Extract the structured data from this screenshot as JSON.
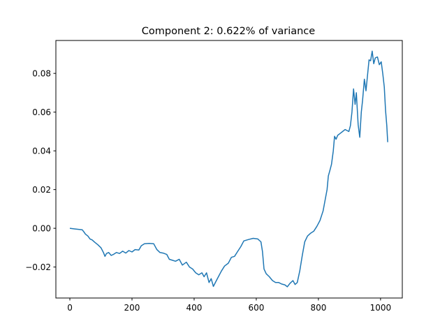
{
  "chart_data": {
    "type": "line",
    "title": "Component 2: 0.622% of variance",
    "xlabel": "",
    "ylabel": "",
    "xlim": [
      -45,
      1070
    ],
    "ylim": [
      -0.036,
      0.097
    ],
    "x_ticks": [
      0,
      200,
      400,
      600,
      800,
      1000
    ],
    "x_tick_labels": [
      "0",
      "200",
      "400",
      "600",
      "800",
      "1000"
    ],
    "y_ticks": [
      -0.02,
      0.0,
      0.02,
      0.04,
      0.06,
      0.08
    ],
    "y_tick_labels": [
      "−0.02",
      "0.00",
      "0.02",
      "0.04",
      "0.06",
      "0.08"
    ],
    "grid": false,
    "legend": "none",
    "series": [
      {
        "color": "#1f77b4",
        "points": [
          [
            0,
            0.0
          ],
          [
            15,
            -0.0003
          ],
          [
            30,
            -0.0006
          ],
          [
            40,
            -0.0008
          ],
          [
            45,
            -0.0018
          ],
          [
            50,
            -0.003
          ],
          [
            58,
            -0.004
          ],
          [
            65,
            -0.0055
          ],
          [
            72,
            -0.006
          ],
          [
            80,
            -0.0072
          ],
          [
            90,
            -0.0085
          ],
          [
            100,
            -0.01
          ],
          [
            108,
            -0.0125
          ],
          [
            113,
            -0.0145
          ],
          [
            118,
            -0.013
          ],
          [
            125,
            -0.0125
          ],
          [
            133,
            -0.014
          ],
          [
            140,
            -0.0135
          ],
          [
            150,
            -0.0125
          ],
          [
            160,
            -0.013
          ],
          [
            170,
            -0.0118
          ],
          [
            180,
            -0.0128
          ],
          [
            190,
            -0.0115
          ],
          [
            200,
            -0.0122
          ],
          [
            210,
            -0.011
          ],
          [
            222,
            -0.0112
          ],
          [
            230,
            -0.009
          ],
          [
            240,
            -0.008
          ],
          [
            255,
            -0.0078
          ],
          [
            270,
            -0.008
          ],
          [
            280,
            -0.011
          ],
          [
            290,
            -0.0125
          ],
          [
            300,
            -0.0128
          ],
          [
            312,
            -0.0135
          ],
          [
            320,
            -0.016
          ],
          [
            330,
            -0.0165
          ],
          [
            340,
            -0.017
          ],
          [
            352,
            -0.016
          ],
          [
            362,
            -0.019
          ],
          [
            375,
            -0.0175
          ],
          [
            385,
            -0.02
          ],
          [
            395,
            -0.021
          ],
          [
            405,
            -0.023
          ],
          [
            415,
            -0.024
          ],
          [
            425,
            -0.023
          ],
          [
            432,
            -0.025
          ],
          [
            440,
            -0.023
          ],
          [
            448,
            -0.028
          ],
          [
            455,
            -0.026
          ],
          [
            462,
            -0.03
          ],
          [
            470,
            -0.0275
          ],
          [
            478,
            -0.025
          ],
          [
            488,
            -0.022
          ],
          [
            498,
            -0.0195
          ],
          [
            510,
            -0.018
          ],
          [
            520,
            -0.015
          ],
          [
            530,
            -0.0145
          ],
          [
            540,
            -0.012
          ],
          [
            550,
            -0.0095
          ],
          [
            560,
            -0.0065
          ],
          [
            575,
            -0.0058
          ],
          [
            590,
            -0.0052
          ],
          [
            605,
            -0.0055
          ],
          [
            615,
            -0.007
          ],
          [
            620,
            -0.012
          ],
          [
            625,
            -0.021
          ],
          [
            632,
            -0.0235
          ],
          [
            642,
            -0.025
          ],
          [
            652,
            -0.027
          ],
          [
            662,
            -0.028
          ],
          [
            672,
            -0.028
          ],
          [
            682,
            -0.0288
          ],
          [
            692,
            -0.0292
          ],
          [
            700,
            -0.0302
          ],
          [
            708,
            -0.0285
          ],
          [
            718,
            -0.027
          ],
          [
            725,
            -0.029
          ],
          [
            732,
            -0.028
          ],
          [
            740,
            -0.022
          ],
          [
            748,
            -0.014
          ],
          [
            756,
            -0.007
          ],
          [
            765,
            -0.004
          ],
          [
            775,
            -0.0025
          ],
          [
            785,
            -0.0015
          ],
          [
            795,
            0.001
          ],
          [
            805,
            0.004
          ],
          [
            815,
            0.009
          ],
          [
            822,
            0.015
          ],
          [
            828,
            0.02
          ],
          [
            832,
            0.027
          ],
          [
            837,
            0.03
          ],
          [
            842,
            0.033
          ],
          [
            848,
            0.04
          ],
          [
            852,
            0.0475
          ],
          [
            857,
            0.046
          ],
          [
            862,
            0.048
          ],
          [
            870,
            0.049
          ],
          [
            878,
            0.05
          ],
          [
            886,
            0.051
          ],
          [
            892,
            0.0505
          ],
          [
            898,
            0.05
          ],
          [
            903,
            0.053
          ],
          [
            908,
            0.06
          ],
          [
            913,
            0.072
          ],
          [
            918,
            0.064
          ],
          [
            922,
            0.07
          ],
          [
            928,
            0.0535
          ],
          [
            933,
            0.047
          ],
          [
            938,
            0.06
          ],
          [
            942,
            0.066
          ],
          [
            948,
            0.077
          ],
          [
            953,
            0.071
          ],
          [
            958,
            0.079
          ],
          [
            963,
            0.087
          ],
          [
            968,
            0.0865
          ],
          [
            973,
            0.0915
          ],
          [
            978,
            0.085
          ],
          [
            983,
            0.088
          ],
          [
            990,
            0.0885
          ],
          [
            996,
            0.0845
          ],
          [
            1002,
            0.086
          ],
          [
            1007,
            0.08
          ],
          [
            1012,
            0.073
          ],
          [
            1016,
            0.061
          ],
          [
            1020,
            0.053
          ],
          [
            1023,
            0.0445
          ]
        ]
      }
    ]
  }
}
